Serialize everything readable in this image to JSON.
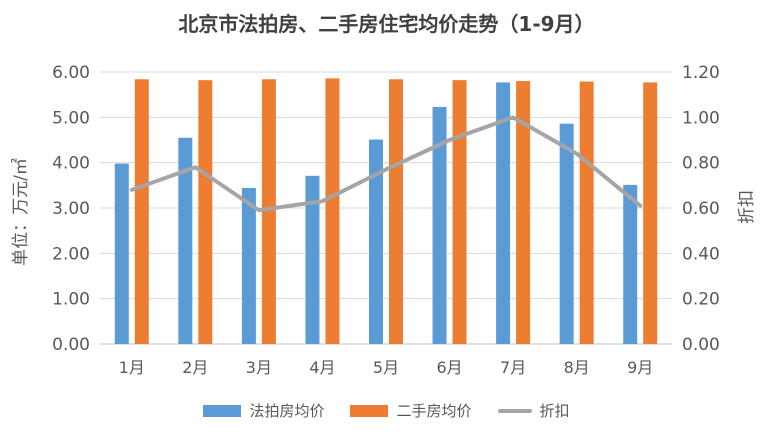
{
  "colors": {
    "auction": "#5b9bd5",
    "resale": "#ed7d31",
    "discount": "#a5a5a5"
  },
  "chart_data": {
    "type": "bar",
    "title": "北京市法拍房、二手房住宅均价走势（1-9月）",
    "ylabel": "单位：万元/㎡",
    "y2label": "折扣",
    "categories": [
      "1月",
      "2月",
      "3月",
      "4月",
      "5月",
      "6月",
      "7月",
      "8月",
      "9月"
    ],
    "ylim": [
      0,
      6
    ],
    "y2lim": [
      0,
      1.2
    ],
    "yticks": [
      "0.00",
      "1.00",
      "2.00",
      "3.00",
      "4.00",
      "5.00",
      "6.00"
    ],
    "y2ticks": [
      "0.00",
      "0.20",
      "0.40",
      "0.60",
      "0.80",
      "1.00",
      "1.20"
    ],
    "grid": true,
    "legend_position": "bottom",
    "series": [
      {
        "name": "法拍房均价",
        "type": "bar",
        "axis": "left",
        "values": [
          3.98,
          4.55,
          3.44,
          3.71,
          4.51,
          5.23,
          5.77,
          4.86,
          3.51
        ]
      },
      {
        "name": "二手房均价",
        "type": "bar",
        "axis": "left",
        "values": [
          5.84,
          5.82,
          5.84,
          5.86,
          5.84,
          5.82,
          5.8,
          5.79,
          5.77
        ]
      },
      {
        "name": "折扣",
        "type": "line",
        "axis": "right",
        "values": [
          0.68,
          0.78,
          0.59,
          0.63,
          0.77,
          0.9,
          1.0,
          0.84,
          0.61
        ]
      }
    ]
  }
}
